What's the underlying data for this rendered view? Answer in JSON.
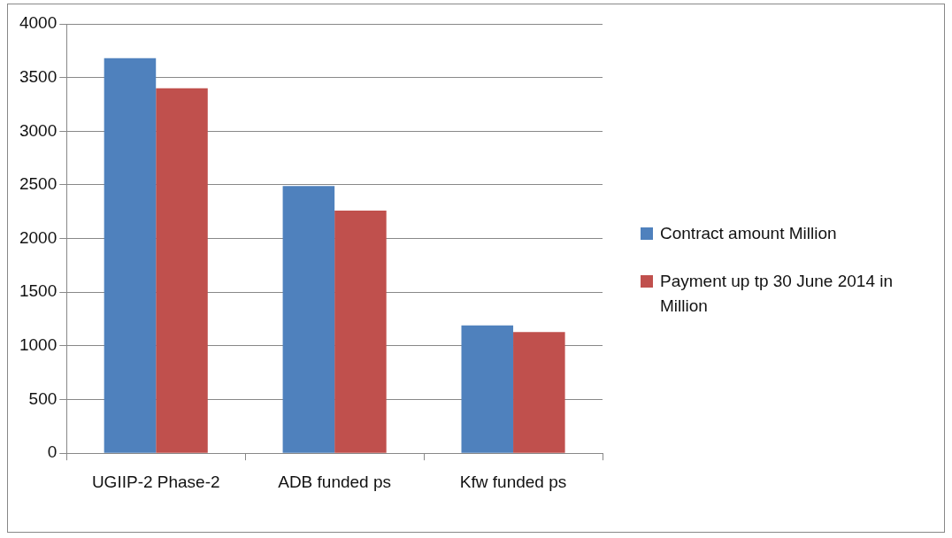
{
  "chart_data": {
    "type": "bar",
    "categories": [
      "UGIIP-2 Phase-2",
      "ADB funded ps",
      "Kfw funded ps"
    ],
    "series": [
      {
        "name": "Contract amount Million",
        "color": "#4f81bd",
        "values": [
          3680,
          2490,
          1190
        ]
      },
      {
        "name": "Payment up tp 30 June 2014 in Million",
        "color": "#c0504d",
        "values": [
          3400,
          2260,
          1130
        ]
      }
    ],
    "ylim": [
      0,
      4000
    ],
    "yticks": [
      0,
      500,
      1000,
      1500,
      2000,
      2500,
      3000,
      3500,
      4000
    ],
    "grid": "y",
    "legend": "right"
  }
}
